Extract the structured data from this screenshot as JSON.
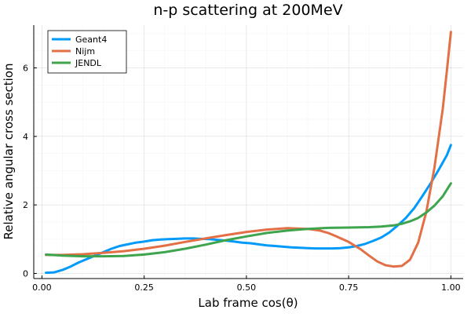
{
  "chart_data": {
    "type": "line",
    "title": "n-p scattering at 200MeV",
    "xlabel": "Lab frame cos(θ)",
    "ylabel": "Relative angular cross section",
    "xlim": [
      -0.02,
      1.03
    ],
    "ylim": [
      -0.15,
      7.25
    ],
    "x_ticks": [
      {
        "value": 0.0,
        "label": "0.00"
      },
      {
        "value": 0.25,
        "label": "0.25"
      },
      {
        "value": 0.5,
        "label": "0.50"
      },
      {
        "value": 0.75,
        "label": "0.75"
      },
      {
        "value": 1.0,
        "label": "1.00"
      }
    ],
    "y_ticks": [
      {
        "value": 0,
        "label": "0"
      },
      {
        "value": 2,
        "label": "2"
      },
      {
        "value": 4,
        "label": "4"
      },
      {
        "value": 6,
        "label": "6"
      }
    ],
    "grid": true,
    "legend_position": "top-left",
    "series": [
      {
        "name": "Geant4",
        "color": "#009AFA",
        "x": [
          0.01,
          0.03,
          0.05,
          0.07,
          0.09,
          0.11,
          0.13,
          0.15,
          0.17,
          0.19,
          0.21,
          0.23,
          0.25,
          0.27,
          0.29,
          0.31,
          0.33,
          0.35,
          0.37,
          0.39,
          0.41,
          0.43,
          0.45,
          0.47,
          0.49,
          0.51,
          0.53,
          0.55,
          0.57,
          0.59,
          0.61,
          0.63,
          0.65,
          0.67,
          0.69,
          0.71,
          0.73,
          0.75,
          0.77,
          0.79,
          0.81,
          0.83,
          0.85,
          0.87,
          0.89,
          0.91,
          0.93,
          0.95,
          0.97,
          0.99,
          1.0
        ],
        "y": [
          0.02,
          0.03,
          0.1,
          0.2,
          0.32,
          0.42,
          0.52,
          0.62,
          0.72,
          0.8,
          0.85,
          0.9,
          0.93,
          0.97,
          0.99,
          1.0,
          1.01,
          1.02,
          1.02,
          1.01,
          1.0,
          0.98,
          0.96,
          0.93,
          0.9,
          0.88,
          0.85,
          0.82,
          0.8,
          0.78,
          0.76,
          0.75,
          0.74,
          0.73,
          0.73,
          0.73,
          0.74,
          0.76,
          0.8,
          0.86,
          0.95,
          1.05,
          1.2,
          1.4,
          1.62,
          1.9,
          2.25,
          2.62,
          3.02,
          3.45,
          3.75
        ]
      },
      {
        "name": "Nijm",
        "color": "#E26F46",
        "x": [
          0.01,
          0.05,
          0.1,
          0.15,
          0.2,
          0.25,
          0.3,
          0.35,
          0.4,
          0.45,
          0.5,
          0.55,
          0.6,
          0.65,
          0.68,
          0.7,
          0.72,
          0.75,
          0.78,
          0.8,
          0.82,
          0.84,
          0.86,
          0.88,
          0.9,
          0.92,
          0.94,
          0.96,
          0.98,
          0.99,
          1.0
        ],
        "y": [
          0.54,
          0.54,
          0.56,
          0.6,
          0.65,
          0.72,
          0.81,
          0.92,
          1.02,
          1.12,
          1.21,
          1.28,
          1.32,
          1.3,
          1.25,
          1.18,
          1.08,
          0.92,
          0.7,
          0.52,
          0.35,
          0.24,
          0.2,
          0.22,
          0.4,
          0.9,
          1.8,
          3.1,
          4.8,
          5.9,
          7.05
        ]
      },
      {
        "name": "JENDL",
        "color": "#3EA44E",
        "x": [
          0.01,
          0.05,
          0.1,
          0.15,
          0.2,
          0.25,
          0.3,
          0.35,
          0.4,
          0.45,
          0.5,
          0.55,
          0.6,
          0.65,
          0.7,
          0.75,
          0.8,
          0.83,
          0.86,
          0.88,
          0.9,
          0.92,
          0.94,
          0.96,
          0.98,
          1.0
        ],
        "y": [
          0.55,
          0.52,
          0.5,
          0.5,
          0.51,
          0.55,
          0.62,
          0.72,
          0.84,
          0.97,
          1.08,
          1.18,
          1.25,
          1.3,
          1.33,
          1.34,
          1.35,
          1.37,
          1.4,
          1.45,
          1.52,
          1.62,
          1.78,
          1.98,
          2.25,
          2.63
        ]
      }
    ]
  }
}
